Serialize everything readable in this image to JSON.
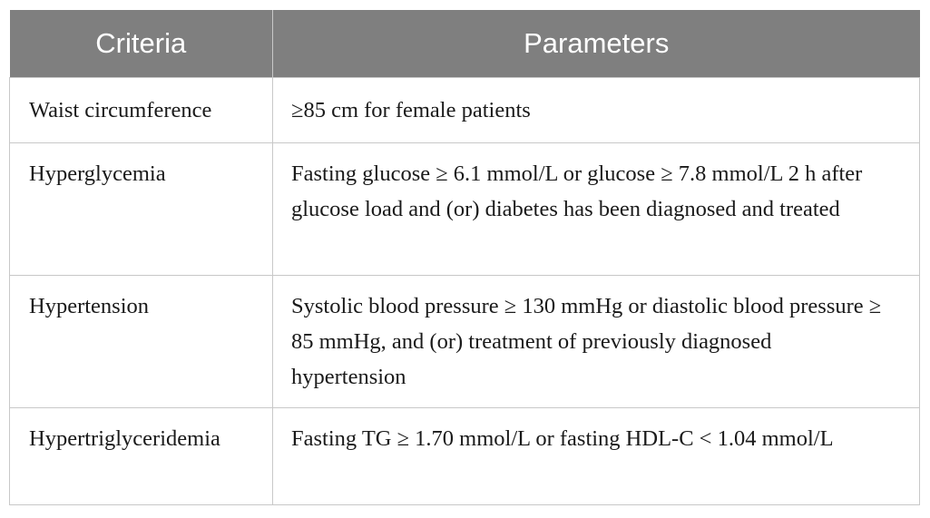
{
  "table": {
    "headers": [
      "Criteria",
      "Parameters"
    ],
    "rows": [
      {
        "criteria": "Waist circumference",
        "parameters": "≥85 cm for female patients"
      },
      {
        "criteria": "Hyperglycemia",
        "parameters": "Fasting glucose ≥ 6.1 mmol/L or glucose ≥ 7.8 mmol/L 2 h after glucose load and (or) diabetes has been diagnosed and treated"
      },
      {
        "criteria": "Hypertension",
        "parameters": "Systolic blood pressure ≥ 130 mmHg or diastolic blood pressure ≥ 85 mmHg, and (or) treatment of previously diagnosed hypertension"
      },
      {
        "criteria": "Hypertriglyceridemia",
        "parameters": "Fasting TG ≥ 1.70 mmol/L or fasting HDL-C < 1.04 mmol/L"
      }
    ]
  },
  "colors": {
    "header_bg": "#7f7f7f",
    "header_text": "#ffffff",
    "border": "#c8c8c8",
    "body_text": "#1a1a1a"
  }
}
